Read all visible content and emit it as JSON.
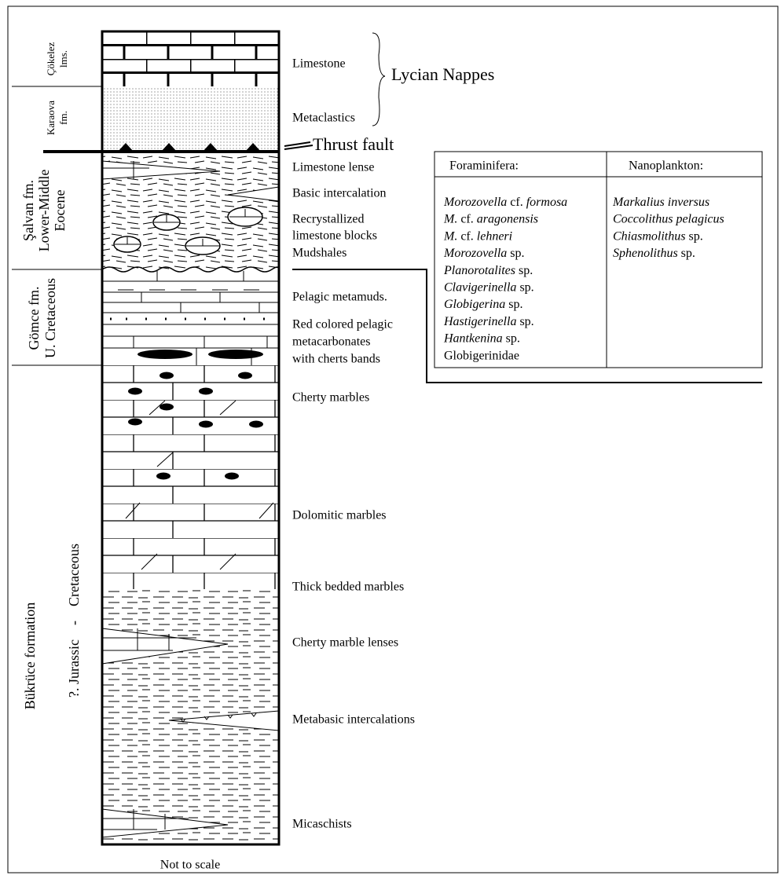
{
  "left_labels": {
    "cokelez": [
      "Çökelez",
      "lms."
    ],
    "karaova": [
      "Karaova",
      "fm."
    ],
    "salvan": [
      "Şalvan fm.",
      "Lower-Middle",
      "Eocene"
    ],
    "gomce": [
      "Gömce fm.",
      "U. Cretaceous"
    ],
    "bukruce": "Bükrüce formation",
    "bukruce_age": "?. Jurassic    -    Cretaceous"
  },
  "lycian_nappes": "Lycian Nappes",
  "thrust_fault": "Thrust fault",
  "lithology_labels": [
    "Limestone",
    "Metaclastics",
    "Limestone lense",
    "Basic intercalation",
    "Recrystallized",
    "limestone blocks",
    "Mudshales",
    "Pelagic metamuds.",
    "Red colored pelagic",
    "metacarbonates",
    "with cherts bands",
    "Cherty marbles",
    "Dolomitic marbles",
    "Thick bedded marbles",
    "Cherty marble lenses",
    "Metabasic intercalations",
    "Micaschists"
  ],
  "table": {
    "headers": [
      "Foraminifera:",
      "Nanoplankton:"
    ],
    "foraminifera": [
      [
        {
          "text": "Morozovella",
          "italic": true
        },
        {
          "text": " cf. "
        },
        {
          "text": "formosa",
          "italic": true
        }
      ],
      [
        {
          "text": "M.",
          "italic": true
        },
        {
          "text": " cf. "
        },
        {
          "text": "aragonensis",
          "italic": true
        }
      ],
      [
        {
          "text": "M.",
          "italic": true
        },
        {
          "text": " cf. "
        },
        {
          "text": "lehneri",
          "italic": true
        }
      ],
      [
        {
          "text": "Morozovella",
          "italic": true
        },
        {
          "text": " sp."
        }
      ],
      [
        {
          "text": "Planorotalites",
          "italic": true
        },
        {
          "text": " sp."
        }
      ],
      [
        {
          "text": "Clavigerinella",
          "italic": true
        },
        {
          "text": " sp."
        }
      ],
      [
        {
          "text": "Globigerina",
          "italic": true
        },
        {
          "text": " sp."
        }
      ],
      [
        {
          "text": "Hastigerinella",
          "italic": true
        },
        {
          "text": " sp."
        }
      ],
      [
        {
          "text": "Hantkenina",
          "italic": true
        },
        {
          "text": " sp."
        }
      ],
      [
        {
          "text": "Globigerinidae"
        }
      ]
    ],
    "nanoplankton": [
      [
        {
          "text": "Markalius inversus",
          "italic": true
        }
      ],
      [
        {
          "text": "Coccolithus pelagicus",
          "italic": true
        }
      ],
      [
        {
          "text": "Chiasmolithus",
          "italic": true
        },
        {
          "text": " sp."
        }
      ],
      [
        {
          "text": "Sphenolithus",
          "italic": true
        },
        {
          "text": " sp."
        }
      ]
    ]
  },
  "footer": "Not to scale"
}
